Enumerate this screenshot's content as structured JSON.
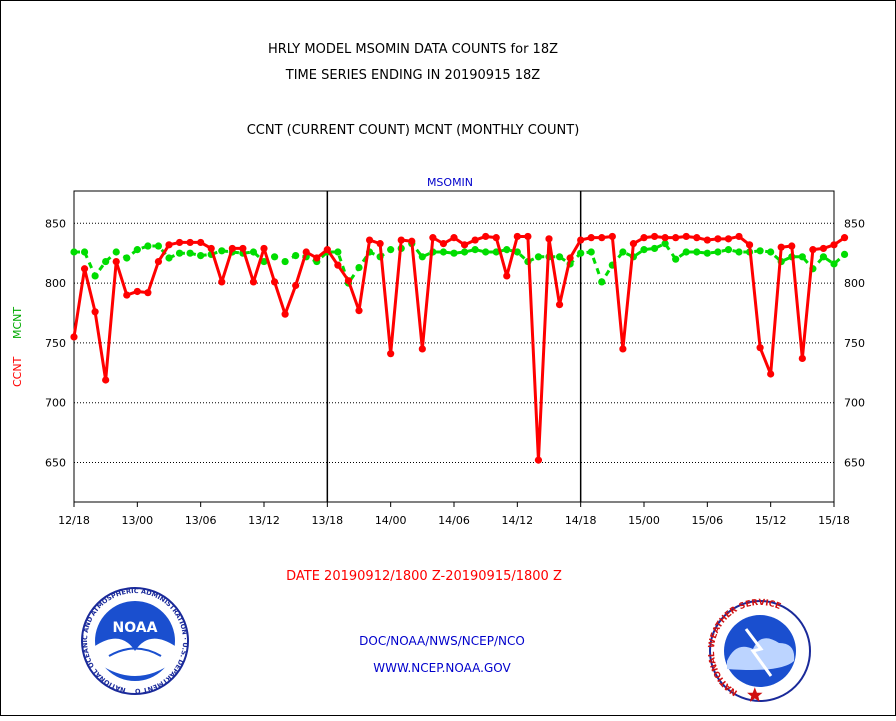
{
  "header": {
    "title_line1": "HRLY MODEL MSOMIN DATA COUNTS for 18Z",
    "title_line2": "TIME SERIES ENDING IN 20190915 18Z",
    "subtitle": "CCNT (CURRENT COUNT) MCNT (MONTHLY COUNT)"
  },
  "footer": {
    "date_range": "DATE 20190912/1800 Z-20190915/1800 Z",
    "org": "DOC/NOAA/NWS/NCEP/NCO",
    "url": "WWW.NCEP.NOAA.GOV"
  },
  "logos": {
    "left_text": "NOAA",
    "left_ring_text": "NATIONAL OCEANIC AND ATMOSPHERIC ADMINISTRATION · U.S. DEPARTMENT OF COMMERCE",
    "right_ring_text": "NATIONAL WEATHER SERVICE"
  },
  "colors": {
    "ccnt": "#ff0000",
    "mcnt": "#00dd00",
    "station": "#0000cc",
    "text": "#000000"
  },
  "chart_data": {
    "type": "line",
    "title": "MSOMIN",
    "ylabel_left": "CCNT",
    "ylabel_right": "MCNT",
    "ylim": [
      617,
      877
    ],
    "yticks": [
      650,
      700,
      750,
      800,
      850
    ],
    "xlim": [
      0,
      72
    ],
    "xticks": [
      {
        "x": 0,
        "label": "12/18"
      },
      {
        "x": 6,
        "label": "13/00"
      },
      {
        "x": 12,
        "label": "13/06"
      },
      {
        "x": 18,
        "label": "13/12"
      },
      {
        "x": 24,
        "label": "13/18"
      },
      {
        "x": 30,
        "label": "14/00"
      },
      {
        "x": 36,
        "label": "14/06"
      },
      {
        "x": 42,
        "label": "14/12"
      },
      {
        "x": 48,
        "label": "14/18"
      },
      {
        "x": 54,
        "label": "15/00"
      },
      {
        "x": 60,
        "label": "15/06"
      },
      {
        "x": 66,
        "label": "15/12"
      },
      {
        "x": 72,
        "label": "15/18"
      }
    ],
    "day_separators": [
      24,
      48
    ],
    "grid": true,
    "series": [
      {
        "name": "CCNT",
        "color": "#ff0000",
        "values": [
          755,
          812,
          776,
          719,
          818,
          790,
          793,
          792,
          818,
          832,
          834,
          834,
          834,
          829,
          801,
          829,
          829,
          801,
          829,
          801,
          774,
          798,
          826,
          821,
          828,
          815,
          802,
          777,
          836,
          833,
          741,
          836,
          835,
          745,
          838,
          833,
          838,
          832,
          836,
          839,
          838,
          806,
          839,
          839,
          652,
          837,
          782,
          821,
          836,
          838,
          838,
          839,
          745,
          833,
          838,
          839,
          838,
          838,
          839,
          838,
          836,
          837,
          837,
          839,
          832,
          746,
          724,
          830,
          831,
          737,
          828,
          829,
          832,
          838
        ]
      },
      {
        "name": "MCNT",
        "color": "#00dd00",
        "values": [
          826,
          826,
          806,
          818,
          826,
          821,
          828,
          831,
          831,
          821,
          825,
          825,
          823,
          824,
          827,
          826,
          825,
          826,
          818,
          822,
          818,
          823,
          822,
          818,
          826,
          826,
          800,
          813,
          826,
          822,
          828,
          829,
          833,
          822,
          826,
          826,
          825,
          826,
          828,
          826,
          826,
          828,
          826,
          818,
          822,
          822,
          822,
          816,
          825,
          826,
          801,
          815,
          826,
          822,
          828,
          829,
          833,
          820,
          826,
          826,
          825,
          826,
          828,
          826,
          826,
          827,
          826,
          818,
          822,
          822,
          812,
          822,
          816,
          824
        ]
      }
    ]
  }
}
